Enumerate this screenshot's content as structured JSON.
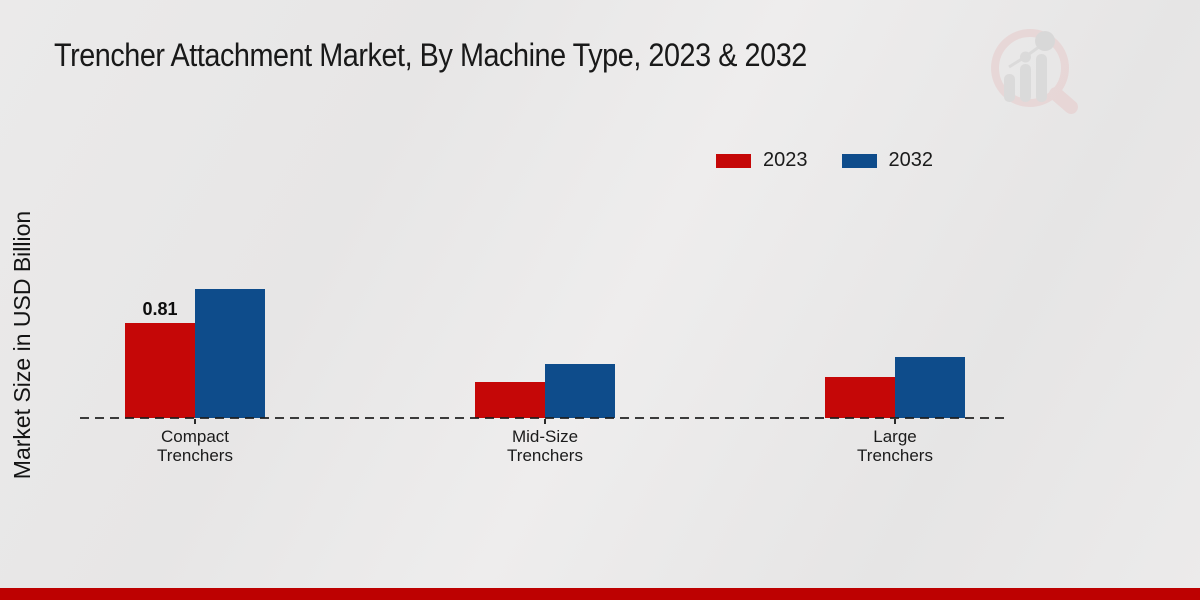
{
  "page": {
    "footer_bar_color": "#bd0101",
    "watermark_icon": "market-research-future-magnifier-bar-chart-logo"
  },
  "chart_data": {
    "type": "bar",
    "title": "Trencher Attachment Market, By Machine Type, 2023 & 2032",
    "ylabel": "Market Size in USD Billion",
    "xlabel": "",
    "unit": "USD Billion",
    "categories": [
      "Compact Trenchers",
      "Mid-Size Trenchers",
      "Large Trenchers"
    ],
    "series": [
      {
        "name": "2023",
        "color": "#c50707",
        "values": [
          0.81,
          0.31,
          0.35
        ]
      },
      {
        "name": "2032",
        "color": "#0e4c8b",
        "values": [
          1.1,
          0.46,
          0.52
        ]
      }
    ],
    "annotations": [
      {
        "series_index": 0,
        "category_index": 0,
        "text": "0.81"
      }
    ],
    "ylim": [
      0,
      1.25
    ],
    "grid": false,
    "axis_ticks_visible": false,
    "legend_position": "top-right",
    "baseline_style": "dashed"
  }
}
